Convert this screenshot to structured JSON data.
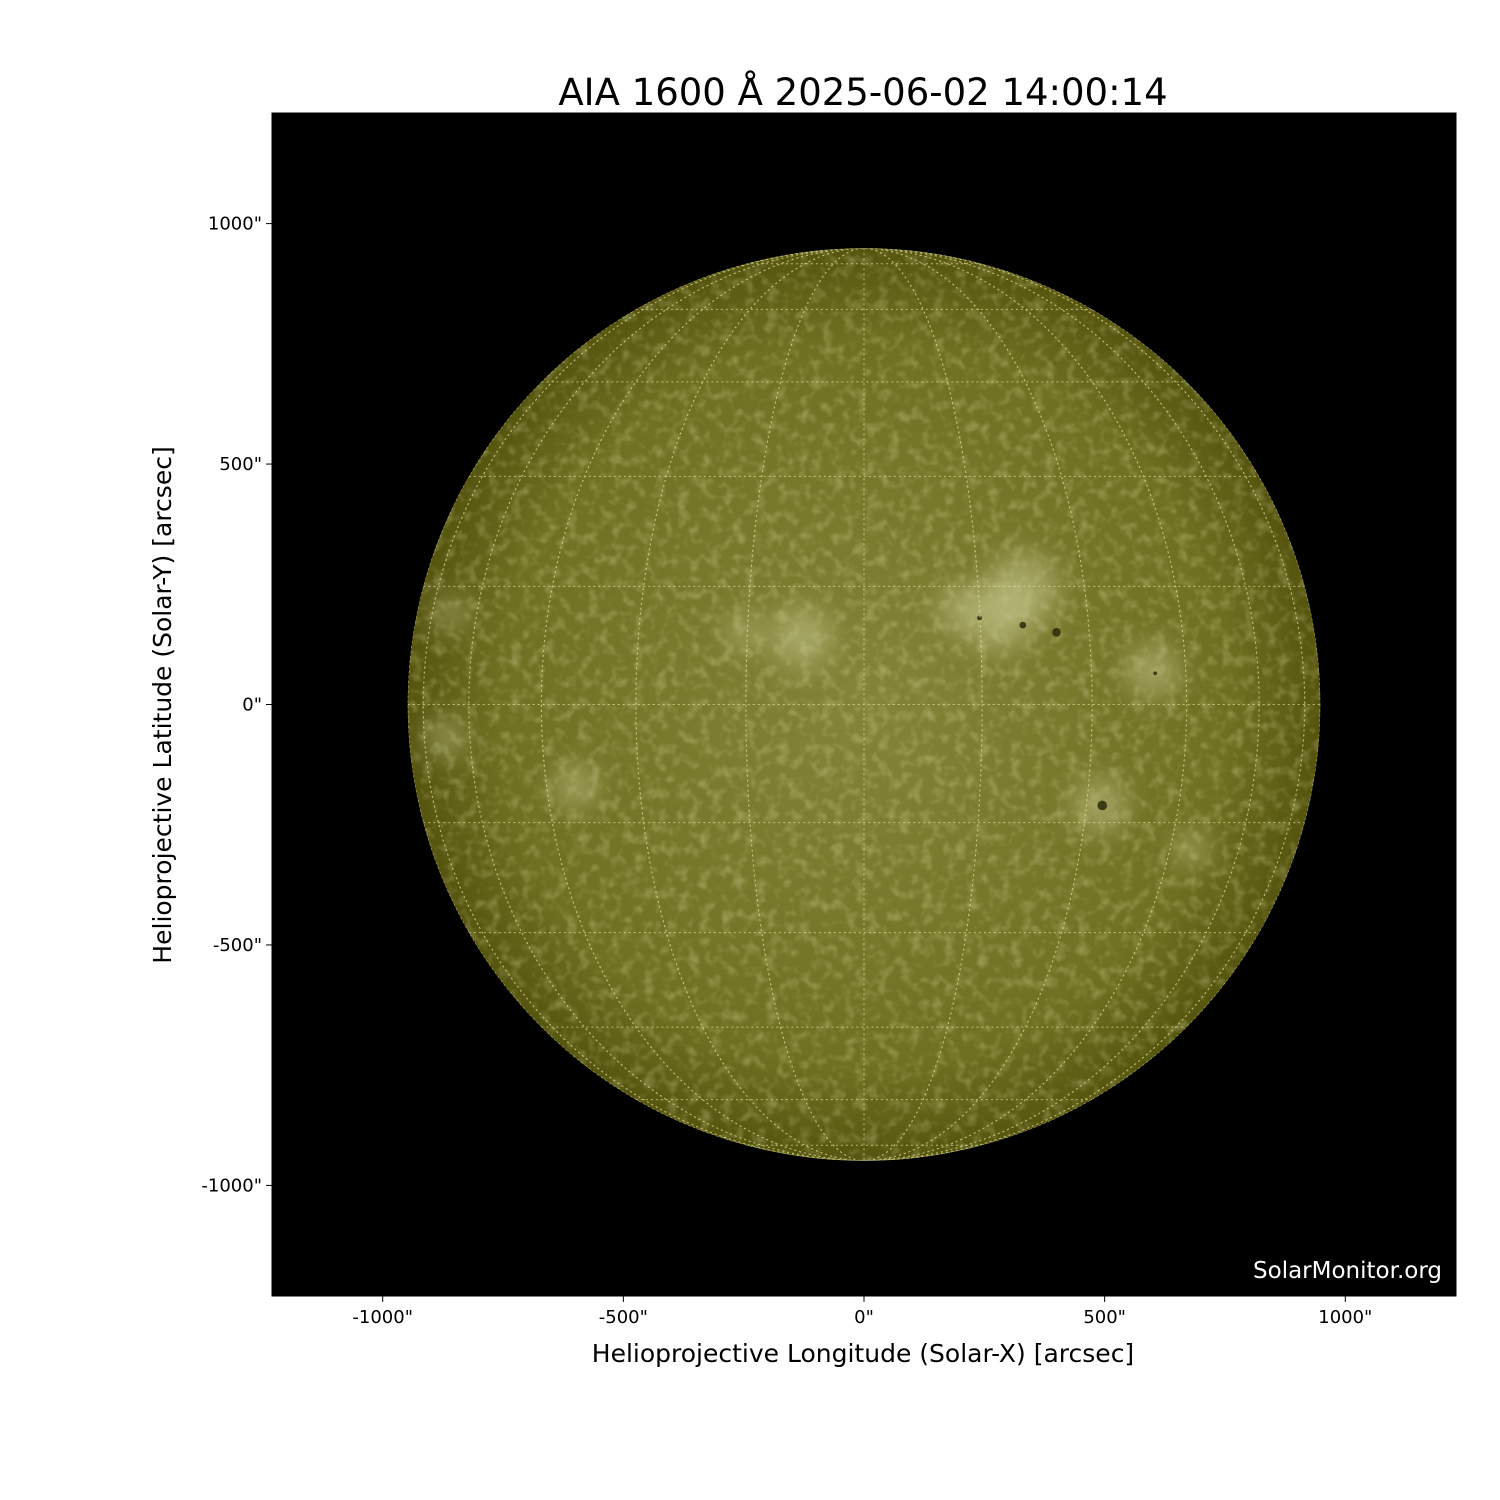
{
  "title": "AIA 1600 Å 2025-06-02 14:00:14",
  "xlabel": "Helioprojective Longitude (Solar-X) [arcsec]",
  "ylabel": "Helioprojective Latitude (Solar-Y) [arcsec]",
  "watermark": "SolarMonitor.org",
  "x_ticks": [
    {
      "value": -1000,
      "label": "-1000\""
    },
    {
      "value": -500,
      "label": "-500\""
    },
    {
      "value": 0,
      "label": "0\""
    },
    {
      "value": 500,
      "label": "500\""
    },
    {
      "value": 1000,
      "label": "1000\""
    }
  ],
  "y_ticks": [
    {
      "value": 1000,
      "label": "1000\""
    },
    {
      "value": 500,
      "label": "500\""
    },
    {
      "value": 0,
      "label": "0\""
    },
    {
      "value": -500,
      "label": "-500\""
    },
    {
      "value": -1000,
      "label": "-1000\""
    }
  ],
  "xlim": [
    -1230,
    1230
  ],
  "ylim": [
    -1230,
    1230
  ],
  "solar_radius_arcsec": 948,
  "grid_spacing_deg": 15,
  "colors": {
    "background": "#000000",
    "disk_center": "#85853a",
    "disk_limb": "#55550f",
    "grid": "#e6e6a0",
    "plage": "#c8c890",
    "sunspot": "#2a2a08"
  },
  "plage_regions_arcsec": [
    {
      "x": 330,
      "y": 240,
      "r": 75
    },
    {
      "x": 280,
      "y": 180,
      "r": 70
    },
    {
      "x": 200,
      "y": 200,
      "r": 45
    },
    {
      "x": -130,
      "y": 140,
      "r": 60
    },
    {
      "x": -250,
      "y": 150,
      "r": 35
    },
    {
      "x": 600,
      "y": 70,
      "r": 55
    },
    {
      "x": 490,
      "y": -210,
      "r": 55
    },
    {
      "x": -600,
      "y": -170,
      "r": 45
    },
    {
      "x": 680,
      "y": -300,
      "r": 35
    },
    {
      "x": -860,
      "y": 190,
      "r": 35
    },
    {
      "x": -870,
      "y": -70,
      "r": 40
    }
  ],
  "sunspots_arcsec": [
    {
      "x": 400,
      "y": 150,
      "r": 9
    },
    {
      "x": 330,
      "y": 165,
      "r": 7
    },
    {
      "x": 240,
      "y": 180,
      "r": 5
    },
    {
      "x": 495,
      "y": -210,
      "r": 10
    },
    {
      "x": 605,
      "y": 65,
      "r": 4
    }
  ]
}
